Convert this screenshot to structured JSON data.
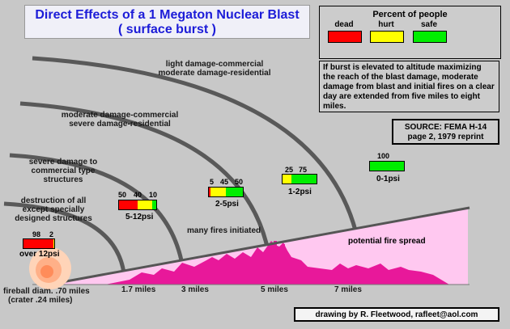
{
  "title": {
    "line1": "Direct Effects of a 1 Megaton Nuclear Blast",
    "line2": "( surface burst )"
  },
  "legend": {
    "title": "Percent of people",
    "items": [
      {
        "label": "dead",
        "color": "#ff0000"
      },
      {
        "label": "hurt",
        "color": "#ffff00"
      },
      {
        "label": "safe",
        "color": "#00ee00"
      }
    ]
  },
  "note": "If burst is elevated to altitude maximizing the reach of the blast damage, moderate damage from blast and initial fires on a clear day are extended from five miles to eight miles.",
  "source": {
    "line1": "SOURCE: FEMA H-14",
    "line2": "page 2, 1979 reprint"
  },
  "credit": "drawing by R. Fleetwood, rafleet@aol.com",
  "zones": {
    "light": {
      "line1": "light damage-commercial",
      "line2": "moderate damage-residential"
    },
    "moderate": {
      "line1": "moderate damage-commercial",
      "line2": "severe damage-residential"
    },
    "severe": {
      "line1": "severe damage to",
      "line2": "commercial type",
      "line3": "structures"
    },
    "destruction": {
      "line1": "destruction of all",
      "line2": "except specially",
      "line3": "designed structures"
    }
  },
  "casualty_bars": [
    {
      "dead": 98,
      "hurt": 2,
      "safe": 0,
      "labels": [
        "98",
        "2"
      ],
      "psi": "over 12psi"
    },
    {
      "dead": 50,
      "hurt": 40,
      "safe": 10,
      "labels": [
        "50",
        "40",
        "10"
      ],
      "psi": "5-12psi"
    },
    {
      "dead": 5,
      "hurt": 45,
      "safe": 50,
      "labels": [
        "5",
        "45",
        "50"
      ],
      "psi": "2-5psi"
    },
    {
      "dead": 0,
      "hurt": 25,
      "safe": 75,
      "labels": [
        "25",
        "75"
      ],
      "psi": "1-2psi"
    },
    {
      "dead": 0,
      "hurt": 0,
      "safe": 100,
      "labels": [
        "100"
      ],
      "psi": "0-1psi"
    }
  ],
  "fires": {
    "initiated": "many fires initiated",
    "spread": "potential fire spread"
  },
  "fireball": {
    "line1": "fireball diam. .70 miles",
    "line2": "(crater .24 miles)"
  },
  "distances": [
    "1.7 miles",
    "3 miles",
    "5 miles",
    "7 miles"
  ],
  "colors": {
    "fire_zone": "#ffc8f0",
    "skyline": "#e8189a",
    "arc": "#595959",
    "title": "#1c1cd8"
  }
}
